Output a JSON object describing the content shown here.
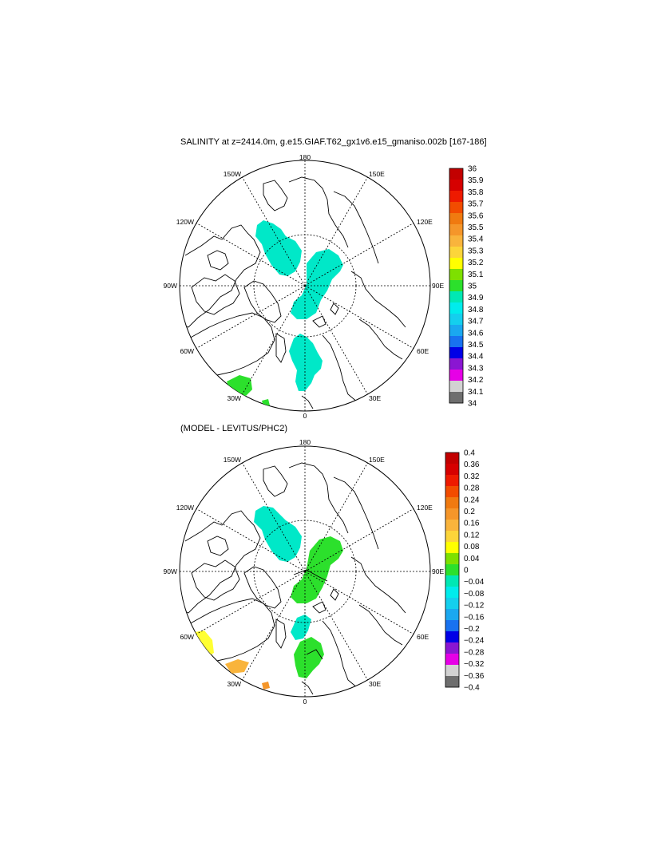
{
  "panels": [
    {
      "title": "SALINITY at z=2414.0m, g.e15.GIAF.T62_gx1v6.e15_gmaniso.002b [167-186]",
      "colorbar": {
        "labels": [
          "36",
          "35.9",
          "35.8",
          "35.7",
          "35.6",
          "35.5",
          "35.4",
          "35.3",
          "35.2",
          "35.1",
          "35",
          "34.9",
          "34.8",
          "34.7",
          "34.6",
          "34.5",
          "34.4",
          "34.3",
          "34.2",
          "34.1",
          "34"
        ],
        "colors": [
          "#c20000",
          "#d60000",
          "#ee1a00",
          "#f24c00",
          "#f07a10",
          "#f5962a",
          "#f9b43c",
          "#fcd53a",
          "#ffff00",
          "#7ee000",
          "#2ce02c",
          "#00e8b4",
          "#00ecec",
          "#14cfee",
          "#1aa8f0",
          "#1872f0",
          "#0000e6",
          "#8a16d2",
          "#e600e6",
          "#d2d2d2",
          "#6e6e6e"
        ]
      }
    },
    {
      "title": "(MODEL - LEVITUS/PHC2)",
      "colorbar": {
        "labels": [
          "0.4",
          "0.36",
          "0.32",
          "0.28",
          "0.24",
          "0.2",
          "0.16",
          "0.12",
          "0.08",
          "0.04",
          "0",
          "−0.04",
          "−0.08",
          "−0.12",
          "−0.16",
          "−0.2",
          "−0.24",
          "−0.28",
          "−0.32",
          "−0.36",
          "−0.4"
        ],
        "colors": [
          "#c20000",
          "#d60000",
          "#ee1a00",
          "#f24c00",
          "#f07a10",
          "#f5962a",
          "#f9b43c",
          "#fcd53a",
          "#ffff00",
          "#7ee000",
          "#2ce02c",
          "#00e8b4",
          "#00ecec",
          "#14cfee",
          "#1aa8f0",
          "#1872f0",
          "#0000e6",
          "#8a16d2",
          "#e600e6",
          "#d2d2d2",
          "#6e6e6e"
        ]
      }
    }
  ],
  "longitude_labels": [
    "180",
    "150E",
    "120E",
    "90E",
    "60E",
    "30E",
    "0",
    "30W",
    "60W",
    "90W",
    "120W",
    "150W"
  ]
}
